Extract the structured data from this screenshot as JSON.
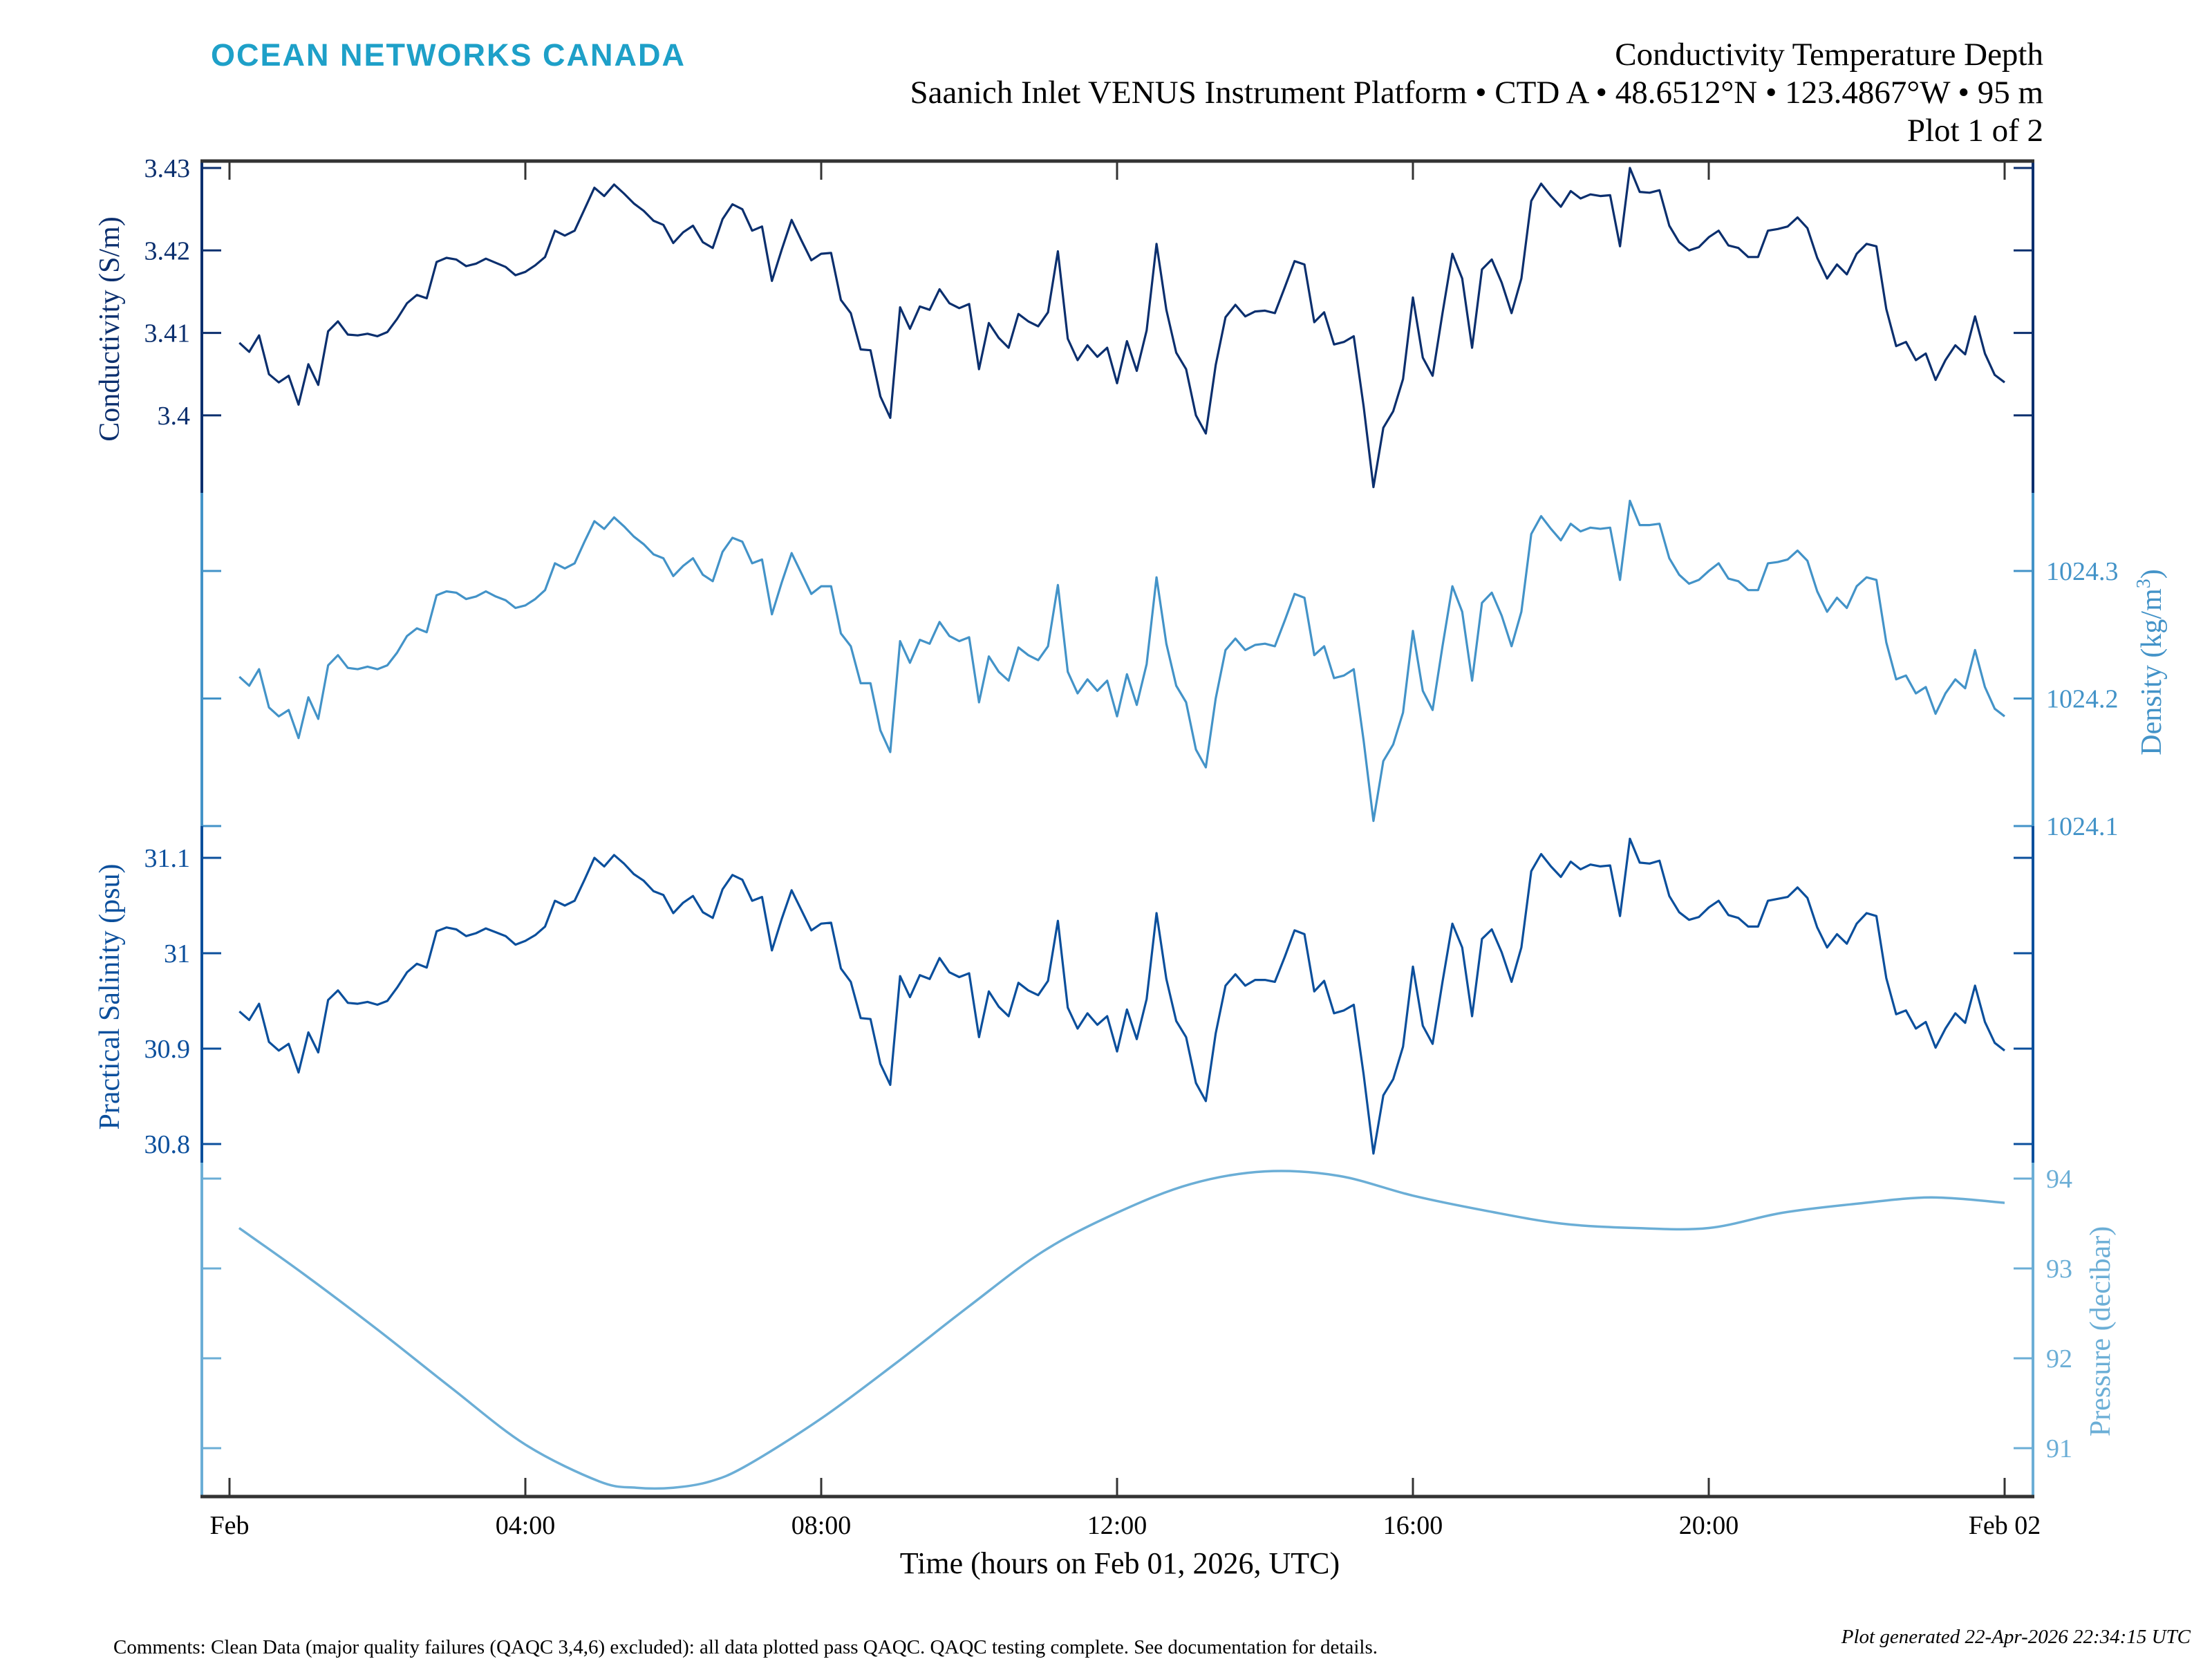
{
  "header": {
    "logo_text": "OCEAN NETWORKS CANADA",
    "title": "Conductivity Temperature Depth",
    "subtitle": "Saanich Inlet VENUS Instrument Platform • CTD A • 48.6512°N • 123.4867°W • 95 m",
    "plot_index": "Plot 1 of 2"
  },
  "footer": {
    "comments": "Comments: Clean Data (major quality failures (QAQC 3,4,6) excluded): all data plotted pass QAQC. QAQC testing complete. See documentation for details.",
    "generated": "Plot generated 22-Apr-2026 22:34:15 UTC"
  },
  "colors": {
    "logo": "#1ea0c8",
    "conductivity": "#0b2f6e",
    "density": "#4393c8",
    "salinity": "#0b4f9c",
    "pressure": "#6baed6",
    "frame": "#333333"
  },
  "chart_data": {
    "type": "line",
    "title": "Conductivity Temperature Depth",
    "xlabel": "Time (hours on Feb 01, 2026, UTC)",
    "xlim_hours": [
      0,
      24
    ],
    "x_ticks_hours": [
      0,
      4,
      8,
      12,
      16,
      20,
      24
    ],
    "x_tick_labels": [
      "Feb",
      "04:00",
      "08:00",
      "12:00",
      "16:00",
      "20:00",
      "Feb 02"
    ],
    "grid": false,
    "sample_interval_min": 8,
    "first_sample_min": 8,
    "series": [
      {
        "key": "conductivity",
        "name": "Conductivity",
        "ylabel": "Conductivity (S/m)",
        "axis_side": "left",
        "ticks": [
          3.43,
          3.42,
          3.41,
          3.4
        ],
        "tick_labels": [
          "3.43",
          "3.42",
          "3.41",
          "3.4"
        ],
        "values": [
          3.4088,
          3.4077,
          3.4097,
          3.405,
          3.404,
          3.4048,
          3.4013,
          3.4062,
          3.4037,
          3.4102,
          3.4114,
          3.4098,
          3.4097,
          3.4099,
          3.4096,
          3.4101,
          3.4117,
          3.4136,
          3.4146,
          3.4142,
          3.4186,
          3.4191,
          3.4189,
          3.4181,
          3.4184,
          3.419,
          3.4185,
          3.418,
          3.417,
          3.4174,
          3.4182,
          3.4192,
          3.4224,
          3.4218,
          3.4224,
          3.425,
          3.4276,
          3.4266,
          3.428,
          3.4269,
          3.4257,
          3.4248,
          3.4236,
          3.4231,
          3.4209,
          3.4222,
          3.423,
          3.421,
          3.4203,
          3.4238,
          3.4256,
          3.425,
          3.4224,
          3.4229,
          3.4163,
          3.4201,
          3.4237,
          3.4212,
          3.4188,
          3.4196,
          3.4197,
          3.414,
          3.4124,
          3.408,
          3.4079,
          3.4023,
          3.3997,
          3.4131,
          3.4105,
          3.4132,
          3.4128,
          3.4153,
          3.4136,
          3.413,
          3.4135,
          3.4056,
          3.4112,
          3.4094,
          3.4082,
          3.4123,
          3.4114,
          3.4108,
          3.4125,
          3.4199,
          3.4093,
          3.4067,
          3.4085,
          3.4071,
          3.4082,
          3.4039,
          3.409,
          3.4054,
          3.4103,
          3.4208,
          3.4128,
          3.4076,
          3.4056,
          3.4,
          3.3978,
          3.4061,
          3.4119,
          3.4134,
          3.412,
          3.4126,
          3.4127,
          3.4124,
          3.4155,
          3.4187,
          3.4183,
          3.4113,
          3.4125,
          3.4086,
          3.4089,
          3.4096,
          3.4011,
          3.3913,
          3.3985,
          3.4005,
          3.4044,
          3.4143,
          3.407,
          3.4048,
          3.4124,
          3.4196,
          3.4166,
          3.4082,
          3.4177,
          3.4189,
          3.4161,
          3.4124,
          3.4166,
          3.426,
          3.4281,
          3.4266,
          3.4253,
          3.4272,
          3.4263,
          3.4268,
          3.4266,
          3.4267,
          3.4205,
          3.43,
          3.4271,
          3.427,
          3.4273,
          3.423,
          3.421,
          3.42,
          3.4204,
          3.4216,
          3.4224,
          3.4206,
          3.4203,
          3.4192,
          3.4192,
          3.4224,
          3.4226,
          3.4229,
          3.424,
          3.4227,
          3.4191,
          3.4166,
          3.4183,
          3.4171,
          3.4196,
          3.4208,
          3.4205,
          3.4129,
          3.4084,
          3.4089,
          3.4067,
          3.4075,
          3.4043,
          3.4067,
          3.4085,
          3.4074,
          3.412,
          3.4075,
          3.4049,
          3.404
        ]
      },
      {
        "key": "density",
        "name": "Density",
        "ylabel_main": "Density (kg/m",
        "ylabel_sup": "3",
        "ylabel_end": ")",
        "axis_side": "right",
        "ticks": [
          1024.3,
          1024.2,
          1024.1
        ],
        "tick_labels": [
          "1024.3",
          "1024.2",
          "1024.1"
        ],
        "values": [
          1024.217,
          1024.21,
          1024.223,
          1024.193,
          1024.186,
          1024.191,
          1024.169,
          1024.201,
          1024.184,
          1024.226,
          1024.234,
          1024.224,
          1024.223,
          1024.225,
          1024.223,
          1024.226,
          1024.236,
          1024.249,
          1024.255,
          1024.252,
          1024.281,
          1024.284,
          1024.283,
          1024.278,
          1024.28,
          1024.284,
          1024.28,
          1024.277,
          1024.271,
          1024.273,
          1024.278,
          1024.285,
          1024.306,
          1024.302,
          1024.306,
          1024.323,
          1024.339,
          1024.333,
          1024.342,
          1024.335,
          1024.327,
          1024.321,
          1024.313,
          1024.31,
          1024.296,
          1024.304,
          1024.31,
          1024.297,
          1024.292,
          1024.315,
          1024.326,
          1024.323,
          1024.306,
          1024.309,
          1024.266,
          1024.291,
          1024.314,
          1024.298,
          1024.282,
          1024.288,
          1024.288,
          1024.251,
          1024.241,
          1024.212,
          1024.212,
          1024.175,
          1024.158,
          1024.245,
          1024.228,
          1024.246,
          1024.243,
          1024.26,
          1024.249,
          1024.245,
          1024.248,
          1024.197,
          1024.233,
          1024.221,
          1024.214,
          1024.24,
          1024.234,
          1024.23,
          1024.241,
          1024.289,
          1024.221,
          1024.204,
          1024.215,
          1024.206,
          1024.214,
          1024.186,
          1024.219,
          1024.195,
          1024.227,
          1024.295,
          1024.243,
          1024.21,
          1024.197,
          1024.16,
          1024.146,
          1024.2,
          1024.238,
          1024.247,
          1024.238,
          1024.242,
          1024.243,
          1024.241,
          1024.261,
          1024.282,
          1024.279,
          1024.234,
          1024.241,
          1024.216,
          1024.218,
          1024.223,
          1024.167,
          1024.104,
          1024.151,
          1024.164,
          1024.189,
          1024.253,
          1024.206,
          1024.191,
          1024.241,
          1024.288,
          1024.268,
          1024.214,
          1024.275,
          1024.283,
          1024.265,
          1024.241,
          1024.268,
          1024.329,
          1024.343,
          1024.333,
          1024.324,
          1024.337,
          1024.331,
          1024.334,
          1024.333,
          1024.334,
          1024.293,
          1024.355,
          1024.336,
          1024.336,
          1024.337,
          1024.31,
          1024.297,
          1024.29,
          1024.293,
          1024.3,
          1024.306,
          1024.294,
          1024.292,
          1024.285,
          1024.285,
          1024.306,
          1024.307,
          1024.309,
          1024.316,
          1024.308,
          1024.284,
          1024.268,
          1024.279,
          1024.271,
          1024.288,
          1024.295,
          1024.293,
          1024.244,
          1024.215,
          1024.218,
          1024.204,
          1024.209,
          1024.188,
          1024.204,
          1024.215,
          1024.208,
          1024.238,
          1024.209,
          1024.192,
          1024.186
        ]
      },
      {
        "key": "salinity",
        "name": "Practical Salinity",
        "ylabel": "Practical Salinity (psu)",
        "axis_side": "left",
        "ticks": [
          31.1,
          31,
          30.9,
          30.8
        ],
        "tick_labels": [
          "31.1",
          "31",
          "30.9",
          "30.8"
        ],
        "values": [
          30.939,
          30.93,
          30.947,
          30.907,
          30.898,
          30.905,
          30.875,
          30.917,
          30.896,
          30.951,
          30.961,
          30.948,
          30.947,
          30.949,
          30.946,
          30.95,
          30.964,
          30.98,
          30.989,
          30.985,
          31.023,
          31.027,
          31.025,
          31.018,
          31.021,
          31.026,
          31.022,
          31.018,
          31.009,
          31.013,
          31.019,
          31.028,
          31.055,
          31.05,
          31.055,
          31.077,
          31.1,
          31.091,
          31.103,
          31.094,
          31.083,
          31.076,
          31.065,
          31.061,
          31.042,
          31.053,
          31.06,
          31.043,
          31.037,
          31.067,
          31.082,
          31.077,
          31.055,
          31.059,
          31.003,
          31.036,
          31.066,
          31.045,
          31.024,
          31.031,
          31.032,
          30.984,
          30.97,
          30.932,
          30.931,
          30.884,
          30.862,
          30.976,
          30.954,
          30.977,
          30.973,
          30.995,
          30.98,
          30.975,
          30.979,
          30.912,
          30.96,
          30.944,
          30.934,
          30.969,
          30.961,
          30.956,
          30.971,
          31.034,
          30.943,
          30.921,
          30.937,
          30.925,
          30.934,
          30.897,
          30.941,
          30.91,
          30.952,
          31.042,
          30.973,
          30.929,
          30.912,
          30.864,
          30.845,
          30.916,
          30.966,
          30.978,
          30.966,
          30.972,
          30.972,
          30.97,
          30.996,
          31.024,
          31.02,
          30.96,
          30.971,
          30.937,
          30.94,
          30.946,
          30.873,
          30.79,
          30.851,
          30.868,
          30.902,
          30.986,
          30.924,
          30.905,
          30.97,
          31.031,
          31.006,
          30.934,
          31.015,
          31.025,
          31.001,
          30.97,
          31.006,
          31.086,
          31.104,
          31.091,
          31.08,
          31.096,
          31.088,
          31.093,
          31.091,
          31.092,
          31.039,
          31.12,
          31.095,
          31.094,
          31.097,
          31.06,
          31.043,
          31.035,
          31.038,
          31.048,
          31.055,
          31.04,
          31.037,
          31.028,
          31.028,
          31.055,
          31.057,
          31.059,
          31.069,
          31.058,
          31.027,
          31.006,
          31.02,
          31.01,
          31.031,
          31.042,
          31.039,
          30.974,
          30.936,
          30.94,
          30.921,
          30.928,
          30.901,
          30.921,
          30.937,
          30.927,
          30.966,
          30.928,
          30.906,
          30.898
        ]
      },
      {
        "key": "pressure",
        "name": "Pressure",
        "ylabel": "Pressure (decibar)",
        "axis_side": "right",
        "ticks": [
          94,
          93,
          92,
          91
        ],
        "tick_labels": [
          "94",
          "93",
          "92",
          "91"
        ],
        "x_hours": [
          0.13,
          1,
          2,
          3,
          4,
          5,
          5.5,
          6,
          6.5,
          7,
          8,
          9,
          10,
          11,
          12,
          13,
          14,
          15,
          16,
          17,
          18,
          19,
          20,
          21,
          22,
          23,
          24
        ],
        "values": [
          93.45,
          92.94,
          92.32,
          91.67,
          91.04,
          90.63,
          90.56,
          90.56,
          90.63,
          90.81,
          91.33,
          91.94,
          92.58,
          93.19,
          93.62,
          93.94,
          94.08,
          94.03,
          93.81,
          93.64,
          93.5,
          93.45,
          93.45,
          93.62,
          93.72,
          93.79,
          93.73
        ]
      }
    ]
  }
}
